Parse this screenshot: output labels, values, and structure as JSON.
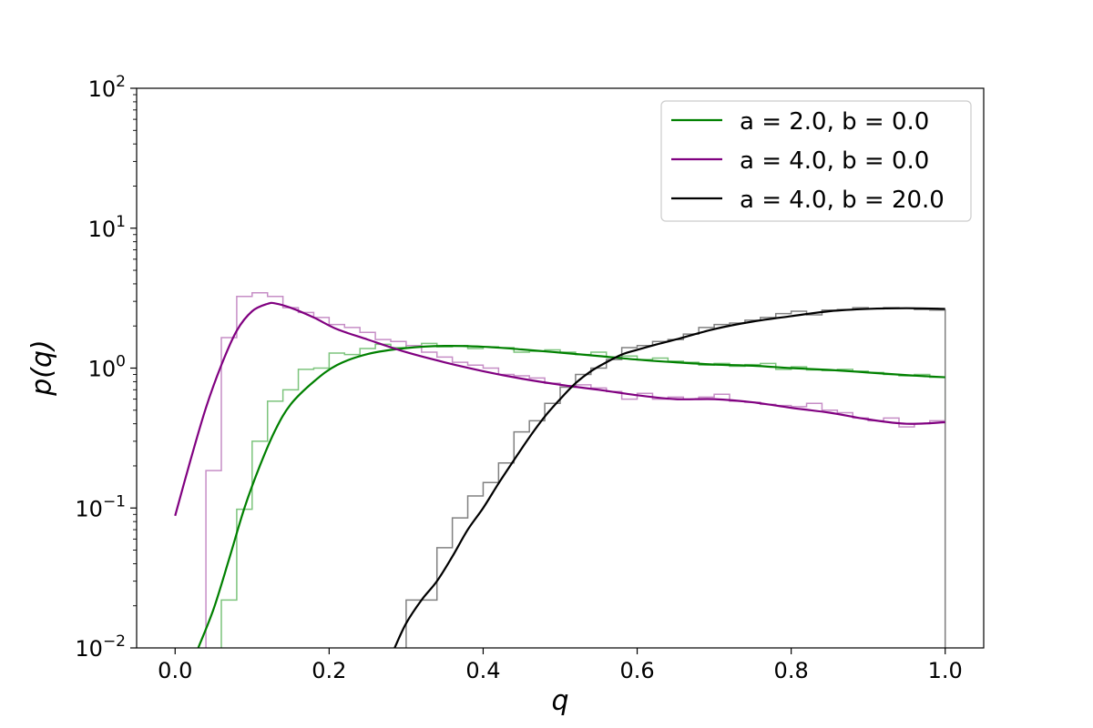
{
  "chart_data": {
    "type": "line",
    "title": "",
    "xlabel": "q",
    "ylabel": "p(q)",
    "xlim": [
      -0.05,
      1.05
    ],
    "ylim": [
      0.01,
      100
    ],
    "yscale": "log",
    "grid": false,
    "legend_position": "top-right",
    "x_ticks": [
      0.0,
      0.2,
      0.4,
      0.6,
      0.8,
      1.0
    ],
    "x_tick_labels": [
      "0.0",
      "0.2",
      "0.4",
      "0.6",
      "0.8",
      "1.0"
    ],
    "y_ticks": [
      0.01,
      0.1,
      1,
      10,
      100
    ],
    "y_tick_labels": [
      {
        "base": "10",
        "exp": "−2"
      },
      {
        "base": "10",
        "exp": "−1"
      },
      {
        "base": "10",
        "exp": "0"
      },
      {
        "base": "10",
        "exp": "1"
      },
      {
        "base": "10",
        "exp": "2"
      }
    ],
    "series": [
      {
        "name": "a = 2.0, b = 0.0",
        "color": "#008000",
        "hist_color": "#7cc47c",
        "curve": {
          "x": [
            0.03,
            0.05,
            0.07,
            0.09,
            0.11,
            0.13,
            0.15,
            0.18,
            0.21,
            0.25,
            0.3,
            0.35,
            0.4,
            0.45,
            0.5,
            0.55,
            0.6,
            0.65,
            0.7,
            0.75,
            0.8,
            0.85,
            0.9,
            0.95,
            1.0
          ],
          "y": [
            0.01,
            0.019,
            0.043,
            0.1,
            0.2,
            0.36,
            0.55,
            0.8,
            1.05,
            1.26,
            1.39,
            1.44,
            1.42,
            1.36,
            1.29,
            1.22,
            1.15,
            1.1,
            1.06,
            1.04,
            1.0,
            0.97,
            0.93,
            0.89,
            0.86
          ]
        },
        "hist": {
          "edges": [
            0.06,
            0.08,
            0.1,
            0.12,
            0.14,
            0.16,
            0.18,
            0.2,
            0.22,
            0.24,
            0.26,
            0.28,
            0.3,
            0.32,
            0.34,
            0.36,
            0.38,
            0.4,
            0.42,
            0.44,
            0.46,
            0.48,
            0.5,
            0.52,
            0.54,
            0.56,
            0.58,
            0.6,
            0.62,
            0.64,
            0.66,
            0.68,
            0.7,
            0.72,
            0.74,
            0.76,
            0.78,
            0.8,
            0.82,
            0.84,
            0.86,
            0.88,
            0.9,
            0.92,
            0.94,
            0.96,
            0.98,
            1.0
          ],
          "values": [
            0.022,
            0.098,
            0.3,
            0.58,
            0.7,
            0.98,
            1.0,
            1.28,
            1.25,
            1.38,
            1.48,
            1.4,
            1.45,
            1.5,
            1.42,
            1.45,
            1.38,
            1.42,
            1.4,
            1.3,
            1.32,
            1.35,
            1.3,
            1.25,
            1.3,
            1.2,
            1.22,
            1.15,
            1.18,
            1.12,
            1.1,
            1.05,
            1.08,
            1.03,
            1.06,
            1.08,
            0.98,
            1.02,
            0.97,
            0.96,
            0.98,
            0.95,
            0.93,
            0.9,
            0.88,
            0.9,
            0.86
          ]
        }
      },
      {
        "name": "a = 4.0, b = 0.0",
        "color": "#800080",
        "hist_color": "#c68ec6",
        "curve": {
          "x": [
            0.0,
            0.02,
            0.04,
            0.06,
            0.08,
            0.1,
            0.12,
            0.13,
            0.15,
            0.18,
            0.21,
            0.25,
            0.3,
            0.35,
            0.4,
            0.45,
            0.5,
            0.55,
            0.6,
            0.65,
            0.7,
            0.75,
            0.8,
            0.85,
            0.9,
            0.95,
            1.0
          ],
          "y": [
            0.088,
            0.22,
            0.52,
            1.05,
            1.85,
            2.55,
            2.88,
            2.9,
            2.7,
            2.3,
            1.9,
            1.6,
            1.3,
            1.1,
            0.95,
            0.84,
            0.76,
            0.7,
            0.64,
            0.6,
            0.6,
            0.57,
            0.52,
            0.48,
            0.43,
            0.4,
            0.41
          ]
        },
        "hist": {
          "edges": [
            0.04,
            0.06,
            0.08,
            0.1,
            0.12,
            0.14,
            0.16,
            0.18,
            0.2,
            0.22,
            0.24,
            0.26,
            0.28,
            0.3,
            0.32,
            0.34,
            0.36,
            0.38,
            0.4,
            0.42,
            0.44,
            0.46,
            0.48,
            0.5,
            0.52,
            0.54,
            0.56,
            0.58,
            0.6,
            0.62,
            0.64,
            0.66,
            0.68,
            0.7,
            0.72,
            0.74,
            0.76,
            0.78,
            0.8,
            0.82,
            0.84,
            0.86,
            0.88,
            0.9,
            0.92,
            0.94,
            0.96,
            0.98,
            1.0
          ],
          "values": [
            0.185,
            1.65,
            3.25,
            3.45,
            3.25,
            2.7,
            2.5,
            2.3,
            2.05,
            1.95,
            1.8,
            1.6,
            1.55,
            1.45,
            1.3,
            1.2,
            1.1,
            1.05,
            1.0,
            0.9,
            0.88,
            0.85,
            0.78,
            0.75,
            0.76,
            0.72,
            0.68,
            0.6,
            0.66,
            0.6,
            0.62,
            0.6,
            0.62,
            0.65,
            0.58,
            0.57,
            0.55,
            0.54,
            0.53,
            0.56,
            0.5,
            0.48,
            0.44,
            0.42,
            0.44,
            0.38,
            0.4,
            0.42
          ]
        }
      },
      {
        "name": "a = 4.0, b = 20.0",
        "color": "#000000",
        "hist_color": "#808080",
        "curve": {
          "x": [
            0.285,
            0.3,
            0.32,
            0.34,
            0.36,
            0.38,
            0.4,
            0.42,
            0.44,
            0.46,
            0.48,
            0.5,
            0.52,
            0.54,
            0.56,
            0.58,
            0.6,
            0.62,
            0.65,
            0.7,
            0.75,
            0.8,
            0.85,
            0.9,
            0.95,
            1.0
          ],
          "y": [
            0.01,
            0.015,
            0.022,
            0.03,
            0.045,
            0.07,
            0.1,
            0.15,
            0.22,
            0.32,
            0.45,
            0.6,
            0.78,
            0.95,
            1.1,
            1.25,
            1.35,
            1.45,
            1.6,
            1.9,
            2.15,
            2.35,
            2.55,
            2.65,
            2.68,
            2.65
          ]
        },
        "hist": {
          "edges": [
            0.3,
            0.32,
            0.34,
            0.36,
            0.38,
            0.4,
            0.42,
            0.44,
            0.46,
            0.48,
            0.5,
            0.52,
            0.54,
            0.56,
            0.58,
            0.6,
            0.62,
            0.64,
            0.66,
            0.68,
            0.7,
            0.72,
            0.74,
            0.76,
            0.78,
            0.8,
            0.82,
            0.84,
            0.86,
            0.88,
            0.9,
            0.92,
            0.94,
            0.96,
            0.98,
            1.0
          ],
          "values": [
            0.022,
            0.022,
            0.052,
            0.085,
            0.122,
            0.152,
            0.21,
            0.35,
            0.42,
            0.56,
            0.73,
            0.9,
            1.0,
            1.15,
            1.4,
            1.45,
            1.55,
            1.6,
            1.75,
            1.95,
            2.05,
            2.1,
            2.2,
            2.3,
            2.45,
            2.55,
            2.4,
            2.6,
            2.62,
            2.7,
            2.65,
            2.7,
            2.68,
            2.62,
            2.6
          ]
        }
      }
    ]
  }
}
